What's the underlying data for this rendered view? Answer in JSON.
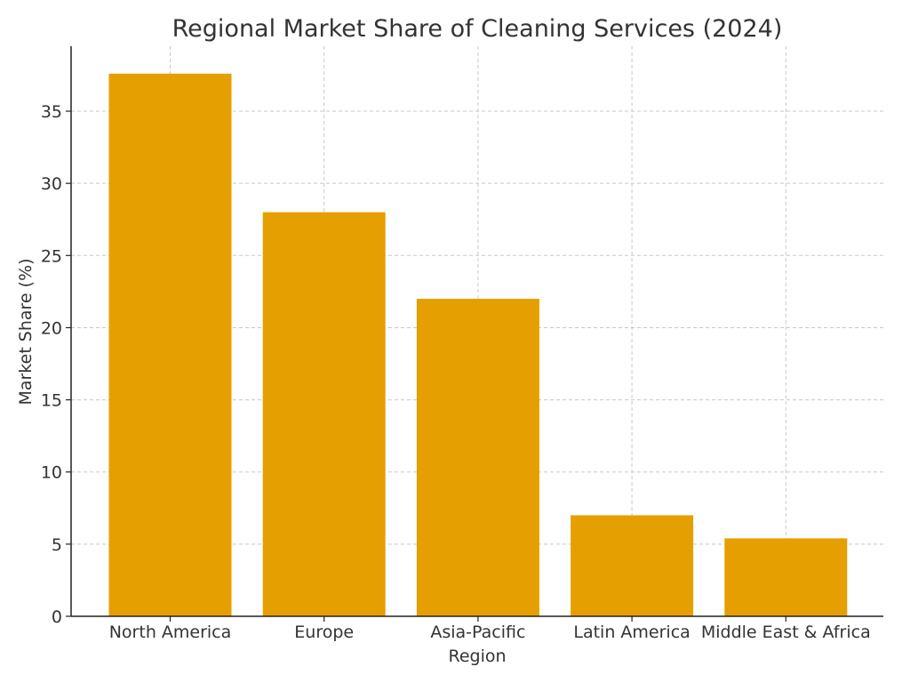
{
  "chart_data": {
    "type": "bar",
    "title": "Regional Market Share of Cleaning Services (2024)",
    "xlabel": "Region",
    "ylabel": "Market Share (%)",
    "categories": [
      "North America",
      "Europe",
      "Asia-Pacific",
      "Latin America",
      "Middle East & Africa"
    ],
    "values": [
      37.6,
      28.0,
      22.0,
      7.0,
      5.4
    ],
    "ylim": [
      0,
      39.5
    ],
    "yticks": [
      0,
      5,
      10,
      15,
      20,
      25,
      30,
      35
    ],
    "grid": true,
    "bar_color": "#E69F00"
  }
}
